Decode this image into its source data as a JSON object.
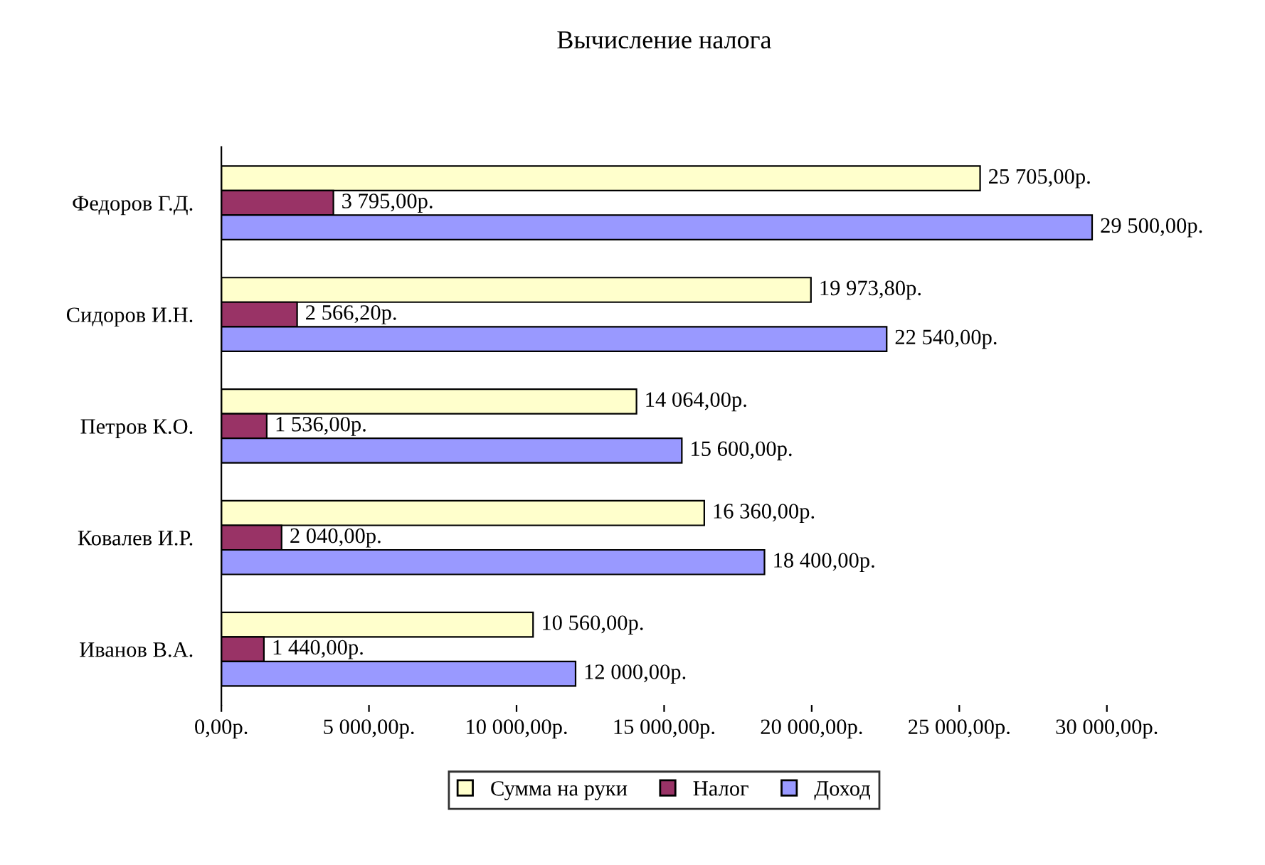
{
  "chart_data": {
    "type": "bar",
    "orientation": "horizontal",
    "title": "Вычисление налога",
    "categories": [
      "Федоров Г.Д.",
      "Сидоров И.Н.",
      "Петров К.О.",
      "Ковалев И.Р.",
      "Иванов В.А."
    ],
    "series": [
      {
        "name": "Сумма на руки",
        "color": "#ffffcc",
        "values": [
          25705,
          19973.8,
          14064,
          16360,
          10560
        ],
        "value_labels": [
          "25 705,00р.",
          "19 973,80р.",
          "14 064,00р.",
          "16 360,00р.",
          "10 560,00р."
        ]
      },
      {
        "name": "Налог",
        "color": "#993366",
        "values": [
          3795,
          2566.2,
          1536,
          2040,
          1440
        ],
        "value_labels": [
          "3 795,00р.",
          "2 566,20р.",
          "1 536,00р.",
          "2 040,00р.",
          "1 440,00р."
        ]
      },
      {
        "name": "Доход",
        "color": "#9999ff",
        "values": [
          29500,
          22540,
          15600,
          18400,
          12000
        ],
        "value_labels": [
          "29 500,00р.",
          "22 540,00р.",
          "15 600,00р.",
          "18 400,00р.",
          "12 000,00р."
        ]
      }
    ],
    "xlim": [
      0,
      30000
    ],
    "xticks": [
      {
        "value": 0,
        "label": "0,00р."
      },
      {
        "value": 5000,
        "label": "5 000,00р."
      },
      {
        "value": 10000,
        "label": "10 000,00р."
      },
      {
        "value": 15000,
        "label": "15 000,00р."
      },
      {
        "value": 20000,
        "label": "20 000,00р."
      },
      {
        "value": 25000,
        "label": "25 000,00р."
      },
      {
        "value": 30000,
        "label": "30 000,00р."
      }
    ],
    "grid": false,
    "legend": "bottom"
  }
}
